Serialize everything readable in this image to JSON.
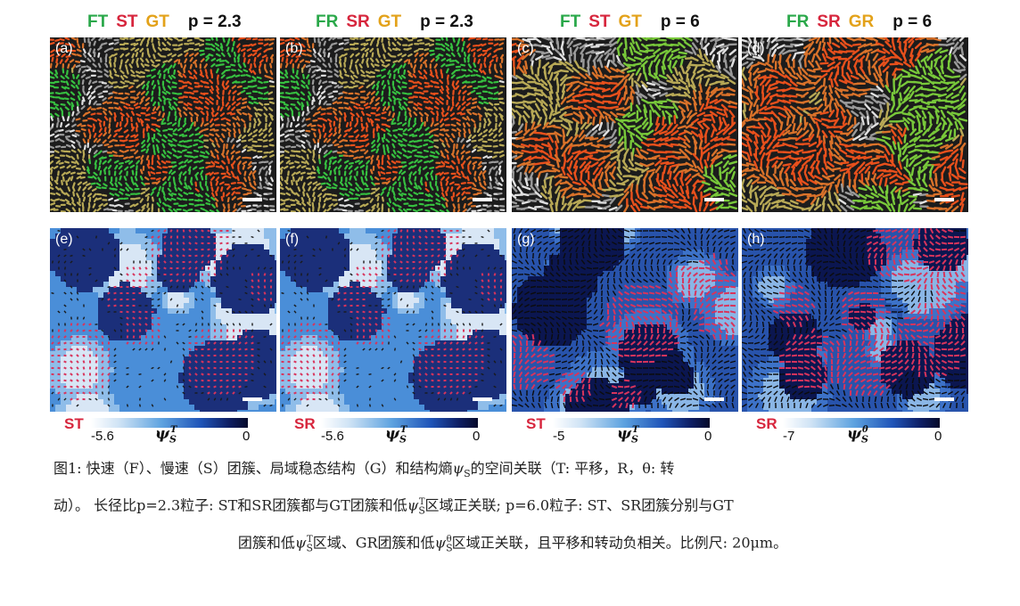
{
  "headers": [
    {
      "labels": [
        "FT",
        "ST",
        "GT"
      ],
      "colors": [
        "#2aa84a",
        "#d7263d",
        "#e3a21a"
      ],
      "p": "p = 2.3"
    },
    {
      "labels": [
        "FR",
        "SR",
        "GT"
      ],
      "colors": [
        "#2aa84a",
        "#d7263d",
        "#e3a21a"
      ],
      "p": "p = 2.3"
    },
    {
      "labels": [
        "FT",
        "ST",
        "GT"
      ],
      "colors": [
        "#2aa84a",
        "#d7263d",
        "#e3a21a"
      ],
      "p": "p = 6"
    },
    {
      "labels": [
        "FR",
        "SR",
        "GR"
      ],
      "colors": [
        "#2aa84a",
        "#d7263d",
        "#e3a21a"
      ],
      "p": "p = 6"
    }
  ],
  "panel_labels_top": [
    "(a)",
    "(b)",
    "(c)",
    "(d)"
  ],
  "panel_labels_bottom": [
    "(e)",
    "(f)",
    "(g)",
    "(h)"
  ],
  "colorbars": [
    {
      "tag": "ST",
      "min": "-5.6",
      "max": "0",
      "sym": "ψ",
      "sub": "S",
      "sup": "T"
    },
    {
      "tag": "SR",
      "min": "-5.6",
      "max": "0",
      "sym": "ψ",
      "sub": "S",
      "sup": "T"
    },
    {
      "tag": "ST",
      "min": "-5",
      "max": "0",
      "sym": "ψ",
      "sub": "S",
      "sup": "T"
    },
    {
      "tag": "SR",
      "min": "-7",
      "max": "0",
      "sym": "ψ",
      "sub": "S",
      "sup": "θ"
    }
  ],
  "caption": {
    "line1a": "图1: 快速（F）、慢速（S）团簇、局域稳态结构（G）和结构熵",
    "line1b": "的空间关联（T: 平移，R，θ: 转",
    "line2a": "动）。 长径比p=2.3粒子: ST和SR团簇都与GT团簇和低",
    "line2b": "区域正关联; p=6.0粒子: ST、SR团簇分别与GT",
    "line3a": "团簇和低",
    "line3b": "区域、GR团簇和低",
    "line3c": "区域正关联，且平移和转动负相关。比例尺: 20μm。",
    "psi": "ψ",
    "sub_s": "S",
    "sup_t": "T",
    "sup_theta": "θ"
  },
  "colors": {
    "fast": "#2aa84a",
    "slow": "#d7263d",
    "stable": "#e3a21a",
    "cmap_low": "#ffffff",
    "cmap_high": "#050a2a"
  }
}
